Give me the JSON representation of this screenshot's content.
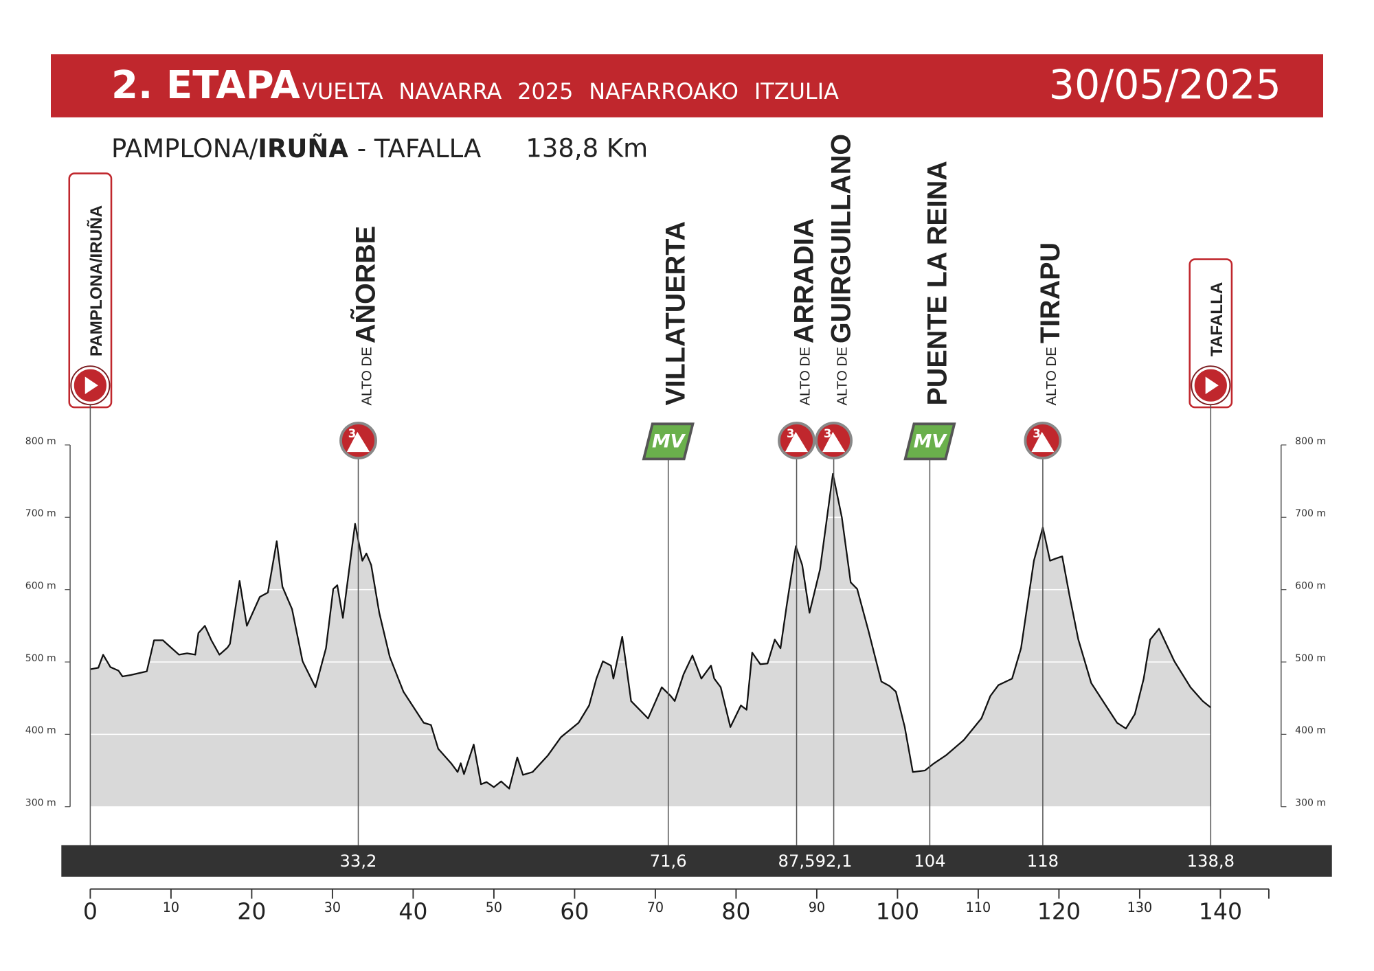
{
  "chart_data": {
    "type": "area",
    "title": "2. ETAPA",
    "subtitle": "VUELTA NAVARRA 2025 NAFARROAKO ITZULIA",
    "date": "30/05/2025",
    "route": [
      "PAMPLONA/",
      "IRUÑA",
      "- TAFALLA"
    ],
    "distance": "138,8 Km",
    "color": "#d9d9d9",
    "line_color": "#111111",
    "x": [
      0,
      1,
      1.6,
      2.5,
      3.5,
      4,
      5,
      7,
      7.9,
      9,
      10,
      10.5,
      11,
      12,
      13,
      13.4,
      14.2,
      15,
      16,
      17,
      17.3,
      18.5,
      19.4,
      21,
      22,
      23.1,
      23.8,
      25,
      26.3,
      27.9,
      29.2,
      30.1,
      30.6,
      31.3,
      32.8,
      33.7,
      34.2,
      34.8,
      35.8,
      37.1,
      38.8,
      41.3,
      42.2,
      43.1,
      44.7,
      45.5,
      45.9,
      46.3,
      47.5,
      48.4,
      49.1,
      50,
      50.9,
      51.9,
      52.9,
      53.6,
      54.8,
      56.7,
      58.3,
      60.5,
      61.8,
      62.7,
      63.5,
      64.5,
      64.8,
      65.9,
      67,
      69.1,
      70.8,
      71.9,
      72.4,
      73.5,
      74.6,
      75.7,
      76.9,
      77.3,
      78.1,
      79.3,
      80.6,
      81.3,
      82,
      83,
      83.9,
      84.8,
      85.5,
      86.3,
      87.4,
      88.2,
      89.1,
      90.4,
      92,
      93.1,
      94.2,
      95,
      96.4,
      98,
      99,
      99.8,
      100.9,
      101.9,
      103.4,
      104.4,
      106,
      108.2,
      110.4,
      111.5,
      112.5,
      114.2,
      115.3,
      116.9,
      118,
      118.9,
      119.6,
      120.4,
      121.3,
      122.4,
      124,
      125.8,
      127.2,
      128.3,
      129.4,
      130.5,
      131.3,
      132.4,
      134.3,
      136.3,
      137.8,
      138.8
    ],
    "values": [
      490,
      492,
      510,
      493,
      488,
      480,
      482,
      487,
      530,
      530,
      520,
      515,
      510,
      512,
      510,
      540,
      550,
      530,
      510,
      520,
      525,
      612,
      550,
      590,
      596,
      667,
      604,
      573,
      501,
      465,
      519,
      601,
      606,
      561,
      691,
      640,
      650,
      634,
      568,
      507,
      459,
      416,
      413,
      380,
      360,
      348,
      360,
      345,
      386,
      331,
      334,
      327,
      335,
      325,
      368,
      344,
      348,
      371,
      396,
      416,
      440,
      477,
      501,
      495,
      477,
      535,
      446,
      422,
      465,
      453,
      446,
      483,
      509,
      477,
      495,
      477,
      465,
      410,
      440,
      434,
      513,
      497,
      498,
      531,
      519,
      580,
      660,
      634,
      568,
      628,
      760,
      700,
      610,
      601,
      543,
      473,
      467,
      459,
      410,
      348,
      350,
      359,
      371,
      392,
      422,
      453,
      468,
      477,
      519,
      640,
      686,
      640,
      643,
      646,
      592,
      531,
      471,
      440,
      416,
      408,
      428,
      477,
      531,
      546,
      501,
      465,
      446,
      437
    ],
    "xlim": [
      0,
      146
    ],
    "xticks": [
      0,
      10,
      20,
      30,
      40,
      50,
      60,
      70,
      80,
      90,
      100,
      110,
      120,
      130,
      140
    ],
    "ylim": [
      300,
      800
    ],
    "yticks": [
      {
        "value": 300,
        "label": "300 m"
      },
      {
        "value": 400,
        "label": "400 m"
      },
      {
        "value": 500,
        "label": "500 m"
      },
      {
        "value": 600,
        "label": "600 m"
      },
      {
        "value": 700,
        "label": "700 m"
      },
      {
        "value": 800,
        "label": "800 m"
      }
    ],
    "grid": true,
    "waypoints": [
      {
        "name": "PAMPLONA/IRUÑA",
        "km": 0,
        "kind": "start"
      },
      {
        "prefix": "ALTO DE",
        "name": "AÑORBE",
        "km": 33.2,
        "km_label": "33,2",
        "kind": "climb",
        "category": "3"
      },
      {
        "name": "VILLATUERTA",
        "km": 71.6,
        "km_label": "71,6",
        "kind": "sprint",
        "category": "MV"
      },
      {
        "prefix": "ALTO DE",
        "name": "ARRADIA",
        "km": 87.5,
        "km_label": "87,5",
        "kind": "climb",
        "category": "3"
      },
      {
        "prefix": "ALTO DE",
        "name": "GUIRGUILLANO",
        "km": 92.1,
        "km_label": "92,1",
        "kind": "climb",
        "category": "3"
      },
      {
        "name": "PUENTE LA REINA",
        "km": 104,
        "kind": "sprint",
        "category": "MV"
      },
      {
        "prefix": "ALTO DE",
        "name": "TIRAPU",
        "km": 118,
        "kind": "climb",
        "category": "3"
      },
      {
        "name": "TAFALLA",
        "km": 138.8,
        "km_label": "138,8",
        "kind": "finish"
      }
    ]
  }
}
